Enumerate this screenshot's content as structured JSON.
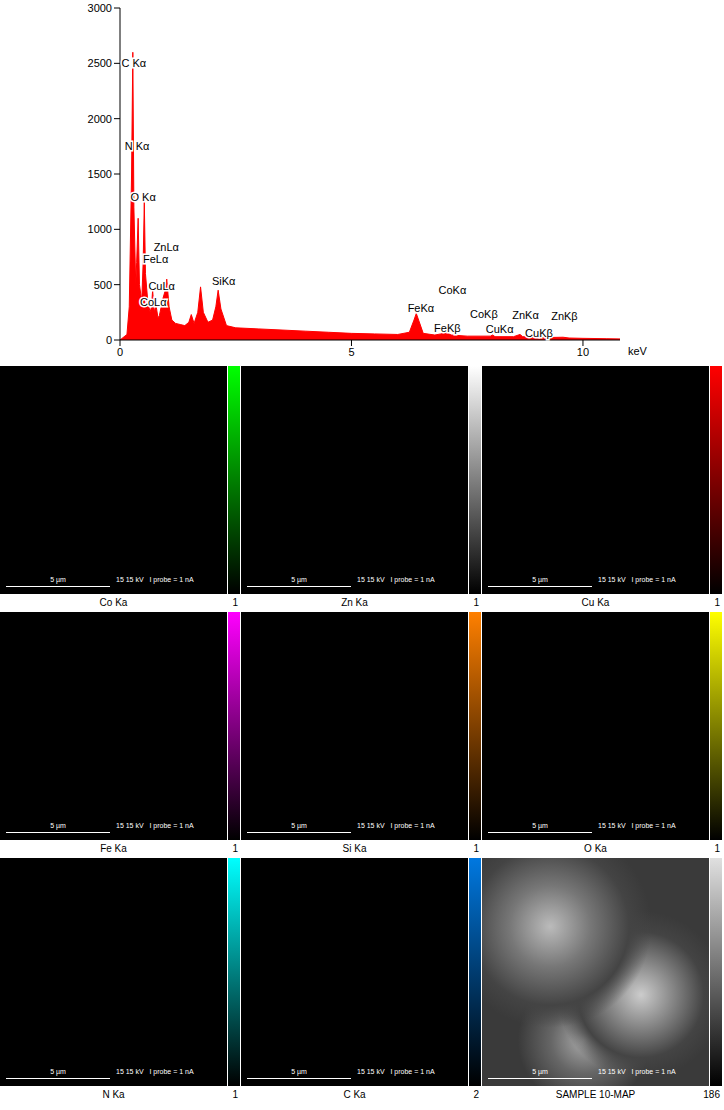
{
  "chart_data": {
    "type": "area",
    "color": "#ff0000",
    "x_label": "keV",
    "grid": false,
    "xlim": [
      0,
      10.8
    ],
    "xticks": [
      0,
      5,
      10
    ],
    "ylim": [
      0,
      3000
    ],
    "yticks": [
      0,
      500,
      1000,
      1500,
      2000,
      2500,
      3000
    ],
    "x": [
      0.0,
      0.15,
      0.2,
      0.25,
      0.277,
      0.3,
      0.34,
      0.36,
      0.392,
      0.42,
      0.47,
      0.5,
      0.525,
      0.55,
      0.6,
      0.65,
      0.68,
      0.705,
      0.74,
      0.776,
      0.82,
      0.85,
      0.93,
      0.98,
      1.01,
      1.06,
      1.12,
      1.2,
      1.3,
      1.4,
      1.487,
      1.54,
      1.6,
      1.68,
      1.74,
      1.8,
      1.9,
      2.0,
      2.07,
      2.12,
      2.18,
      2.3,
      2.5,
      3.0,
      3.5,
      4.0,
      4.5,
      5.0,
      5.5,
      6.0,
      6.25,
      6.35,
      6.4,
      6.45,
      6.55,
      6.8,
      6.93,
      7.06,
      7.15,
      7.5,
      8.0,
      8.05,
      8.1,
      8.5,
      8.64,
      8.7,
      8.9,
      9.2,
      9.57,
      9.7,
      10.0,
      10.5,
      10.8
    ],
    "values": [
      0,
      50,
      300,
      1500,
      2600,
      1200,
      500,
      700,
      1100,
      500,
      350,
      700,
      1250,
      600,
      350,
      250,
      300,
      450,
      250,
      320,
      200,
      220,
      380,
      450,
      550,
      300,
      180,
      150,
      140,
      130,
      160,
      230,
      150,
      250,
      480,
      250,
      160,
      180,
      300,
      450,
      280,
      130,
      110,
      100,
      90,
      80,
      70,
      60,
      55,
      50,
      70,
      180,
      240,
      180,
      60,
      45,
      55,
      70,
      45,
      35,
      35,
      45,
      30,
      30,
      50,
      30,
      28,
      22,
      25,
      18,
      15,
      12,
      10
    ],
    "annotations": [
      {
        "text": "C Kα",
        "x": 0.3,
        "y": 2506
      },
      {
        "text": "N Kα",
        "x": 0.37,
        "y": 1752
      },
      {
        "text": "O Kα",
        "x": 0.5,
        "y": 1292
      },
      {
        "text": "ZnLα",
        "x": 1.0,
        "y": 841
      },
      {
        "text": "FeLα",
        "x": 0.77,
        "y": 729
      },
      {
        "text": "CuLα",
        "x": 0.9,
        "y": 486
      },
      {
        "text": "CoLα",
        "x": 0.72,
        "y": 347
      },
      {
        "text": "SiKα",
        "x": 2.24,
        "y": 529
      },
      {
        "text": "CoKα",
        "x": 7.18,
        "y": 451
      },
      {
        "text": "FeKα",
        "x": 6.5,
        "y": 286
      },
      {
        "text": "FeKβ",
        "x": 7.07,
        "y": 104
      },
      {
        "text": "CoKβ",
        "x": 7.86,
        "y": 234
      },
      {
        "text": "CuKα",
        "x": 8.2,
        "y": 95
      },
      {
        "text": "ZnKα",
        "x": 8.76,
        "y": 225
      },
      {
        "text": "CuKβ",
        "x": 9.05,
        "y": 61
      },
      {
        "text": "ZnKβ",
        "x": 9.6,
        "y": 217
      }
    ]
  },
  "map_info": {
    "scale_bar": "5 µm",
    "info": "15 15 kV   I probe = 1 nA"
  },
  "maps": [
    {
      "label": "Co Ka",
      "color": "#00ff00",
      "scale_max": 1
    },
    {
      "label": "Zn Ka",
      "color": "#ffffff",
      "scale_max": 1
    },
    {
      "label": "Cu Ka",
      "color": "#ff0000",
      "scale_max": 1
    },
    {
      "label": "Fe Ka",
      "color": "#ff00ff",
      "scale_max": 1
    },
    {
      "label": "Si Ka",
      "color": "#ff8000",
      "scale_max": 1
    },
    {
      "label": "O  Ka",
      "color": "#ffff00",
      "scale_max": 1
    },
    {
      "label": "N Ka",
      "color": "#00ffff",
      "scale_max": 1
    },
    {
      "label": "C Ka",
      "color": "#0078e0",
      "scale_max": 2
    },
    {
      "label": "SAMPLE 10-MAP",
      "color": "#e0e0e0",
      "scale_max": 186
    }
  ]
}
